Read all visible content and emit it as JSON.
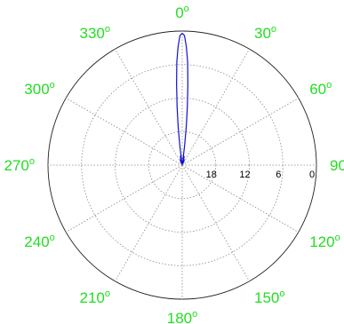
{
  "chart_data": {
    "type": "polar",
    "title": "",
    "angular_direction": "clockwise",
    "zero_direction": "top",
    "angular_ticks": [
      {
        "deg": 0,
        "text": "0",
        "sup": "o"
      },
      {
        "deg": 30,
        "text": "30",
        "sup": "o"
      },
      {
        "deg": 60,
        "text": "60",
        "sup": "o"
      },
      {
        "deg": 90,
        "text": "90",
        "sup": ""
      },
      {
        "deg": 120,
        "text": "120",
        "sup": "o"
      },
      {
        "deg": 150,
        "text": "150",
        "sup": "o"
      },
      {
        "deg": 180,
        "text": "180",
        "sup": "o"
      },
      {
        "deg": 210,
        "text": "210",
        "sup": "o"
      },
      {
        "deg": 240,
        "text": "240",
        "sup": "o"
      },
      {
        "deg": 270,
        "text": "270",
        "sup": "o"
      },
      {
        "deg": 300,
        "text": "300",
        "sup": "o"
      },
      {
        "deg": 330,
        "text": "330",
        "sup": "o"
      }
    ],
    "radial_ticks": [
      {
        "value": 0,
        "text": "0"
      },
      {
        "value": 6,
        "text": "6"
      },
      {
        "value": 12,
        "text": "12"
      },
      {
        "value": 18,
        "text": "18"
      }
    ],
    "radial_range": [
      24,
      0
    ],
    "radial_inverted": true,
    "grid": true,
    "series": [
      {
        "color": "#1010cc",
        "theta_deg": [
          -24,
          -21,
          -18,
          -15,
          -13,
          -12,
          -11,
          -10,
          -9,
          -8,
          -7,
          -6,
          -5,
          -4,
          -3,
          -2,
          -1,
          0,
          1,
          2,
          3,
          4,
          5,
          6,
          7,
          8,
          9,
          10,
          11,
          12,
          13,
          15,
          18,
          21,
          24
        ],
        "r": [
          0.3,
          1.0,
          0.5,
          0.9,
          1.3,
          1.6,
          1.2,
          0.6,
          0.2,
          0.8,
          3.5,
          7.0,
          10.5,
          14.5,
          18.5,
          21.2,
          23.2,
          23.6,
          23.2,
          21.2,
          18.5,
          14.5,
          10.5,
          7.0,
          3.5,
          0.8,
          0.2,
          0.6,
          1.2,
          1.6,
          1.3,
          0.9,
          0.5,
          1.0,
          0.3
        ]
      }
    ]
  }
}
